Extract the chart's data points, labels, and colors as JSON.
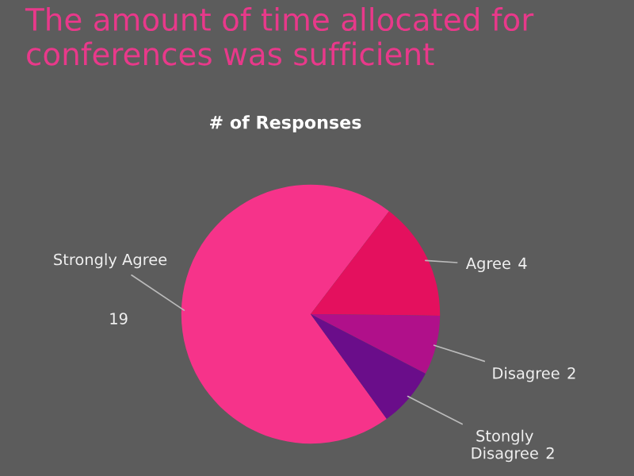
{
  "chart_data": {
    "type": "pie",
    "title": "The amount of time allocated for conferences was sufficient",
    "subtitle": "# of Responses",
    "categories": [
      "Strongly Agree",
      "Agree",
      "Disagree",
      "Stongly Disagree"
    ],
    "values": [
      19,
      4,
      2,
      2
    ],
    "colors": [
      "#f6338a",
      "#e4105e",
      "#b0108a",
      "#6a0d8a"
    ],
    "data_labels": true,
    "legend": false
  }
}
